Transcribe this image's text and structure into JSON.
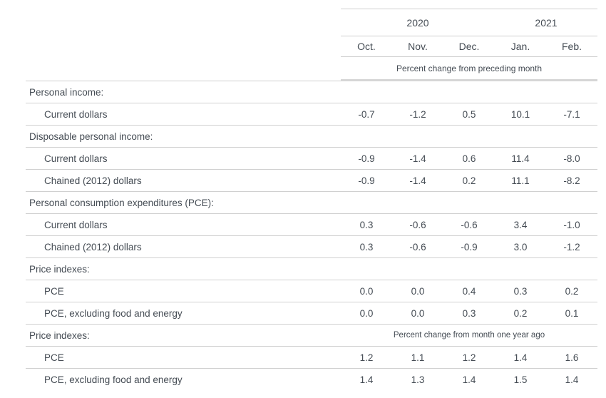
{
  "colors": {
    "text": "#454c54",
    "row_border": "#d0d0d0",
    "header_border": "#cfcfcf",
    "thick_border": "#d6d6d6",
    "background": "#ffffff"
  },
  "chart_data": {
    "type": "table",
    "title": "",
    "column_groups": [
      {
        "label": "2020",
        "span": 3
      },
      {
        "label": "2021",
        "span": 2
      }
    ],
    "columns": [
      "Oct.",
      "Nov.",
      "Dec.",
      "Jan.",
      "Feb."
    ],
    "unit_note_top": "Percent change from preceding month",
    "unit_note_bottom": "Percent change from month one year ago",
    "rows": [
      {
        "type": "section",
        "label": "Personal income:"
      },
      {
        "type": "data",
        "label": "Current dollars",
        "values": [
          "-0.7",
          "-1.2",
          "0.5",
          "10.1",
          "-7.1"
        ]
      },
      {
        "type": "section",
        "label": "Disposable personal income:"
      },
      {
        "type": "data",
        "label": "Current dollars",
        "values": [
          "-0.9",
          "-1.4",
          "0.6",
          "11.4",
          "-8.0"
        ]
      },
      {
        "type": "data",
        "label": "Chained (2012) dollars",
        "values": [
          "-0.9",
          "-1.4",
          "0.2",
          "11.1",
          "-8.2"
        ]
      },
      {
        "type": "section",
        "label": "Personal consumption expenditures (PCE):"
      },
      {
        "type": "data",
        "label": "Current dollars",
        "values": [
          "0.3",
          "-0.6",
          "-0.6",
          "3.4",
          "-1.0"
        ]
      },
      {
        "type": "data",
        "label": "Chained (2012) dollars",
        "values": [
          "0.3",
          "-0.6",
          "-0.9",
          "3.0",
          "-1.2"
        ]
      },
      {
        "type": "section",
        "label": "Price indexes:"
      },
      {
        "type": "data",
        "label": "PCE",
        "values": [
          "0.0",
          "0.0",
          "0.4",
          "0.3",
          "0.2"
        ]
      },
      {
        "type": "data",
        "label": "PCE, excluding food and energy",
        "values": [
          "0.0",
          "0.0",
          "0.3",
          "0.2",
          "0.1"
        ]
      },
      {
        "type": "section-note",
        "label": "Price indexes:",
        "note": "Percent change from month one year ago"
      },
      {
        "type": "data",
        "label": "PCE",
        "values": [
          "1.2",
          "1.1",
          "1.2",
          "1.4",
          "1.6"
        ]
      },
      {
        "type": "data",
        "label": "PCE, excluding food and energy",
        "values": [
          "1.4",
          "1.3",
          "1.4",
          "1.5",
          "1.4"
        ]
      }
    ]
  }
}
